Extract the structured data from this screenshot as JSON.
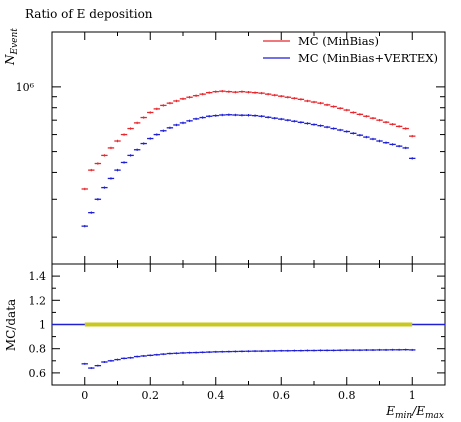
{
  "chart_data": [
    {
      "type": "line",
      "title": "Ratio of E deposition",
      "ylabel": "N_Event",
      "ylabel_main": "N",
      "ylabel_sub": "Event",
      "yscale": "log",
      "ytick_label": "10⁶",
      "ylim": [
        150000,
        1800000
      ],
      "xlim": [
        -0.1,
        1.1
      ],
      "legend_position": "top-right",
      "series": [
        {
          "name": "MC (MinBias)",
          "color": "#e8262c",
          "x": [
            0.0,
            0.02,
            0.04,
            0.06,
            0.08,
            0.1,
            0.12,
            0.14,
            0.16,
            0.18,
            0.2,
            0.22,
            0.24,
            0.26,
            0.28,
            0.3,
            0.32,
            0.34,
            0.36,
            0.38,
            0.4,
            0.42,
            0.44,
            0.46,
            0.48,
            0.5,
            0.52,
            0.54,
            0.56,
            0.58,
            0.6,
            0.62,
            0.64,
            0.66,
            0.68,
            0.7,
            0.72,
            0.74,
            0.76,
            0.78,
            0.8,
            0.82,
            0.84,
            0.86,
            0.88,
            0.9,
            0.92,
            0.94,
            0.96,
            0.98,
            1.0
          ],
          "y": [
            335000,
            410000,
            440000,
            480000,
            520000,
            560000,
            600000,
            640000,
            680000,
            720000,
            760000,
            790000,
            820000,
            840000,
            860000,
            880000,
            895000,
            910000,
            925000,
            940000,
            950000,
            955000,
            950000,
            945000,
            950000,
            945000,
            940000,
            935000,
            925000,
            915000,
            905000,
            895000,
            885000,
            875000,
            860000,
            850000,
            840000,
            825000,
            810000,
            795000,
            780000,
            760000,
            745000,
            730000,
            715000,
            700000,
            685000,
            670000,
            655000,
            640000,
            590000
          ]
        },
        {
          "name": "MC (MinBias+VERTEX)",
          "color": "#1f1fd6",
          "x": [
            0.0,
            0.02,
            0.04,
            0.06,
            0.08,
            0.1,
            0.12,
            0.14,
            0.16,
            0.18,
            0.2,
            0.22,
            0.24,
            0.26,
            0.28,
            0.3,
            0.32,
            0.34,
            0.36,
            0.38,
            0.4,
            0.42,
            0.44,
            0.46,
            0.48,
            0.5,
            0.52,
            0.54,
            0.56,
            0.58,
            0.6,
            0.62,
            0.64,
            0.66,
            0.68,
            0.7,
            0.72,
            0.74,
            0.76,
            0.78,
            0.8,
            0.82,
            0.84,
            0.86,
            0.88,
            0.9,
            0.92,
            0.94,
            0.96,
            0.98,
            1.0
          ],
          "y": [
            225000,
            260000,
            300000,
            340000,
            375000,
            410000,
            445000,
            480000,
            510000,
            545000,
            575000,
            600000,
            625000,
            645000,
            665000,
            680000,
            695000,
            710000,
            720000,
            730000,
            735000,
            740000,
            742000,
            740000,
            738000,
            738000,
            735000,
            730000,
            722000,
            715000,
            708000,
            700000,
            692000,
            684000,
            676000,
            668000,
            660000,
            650000,
            640000,
            630000,
            620000,
            608000,
            596000,
            584000,
            572000,
            560000,
            550000,
            540000,
            530000,
            520000,
            465000
          ]
        }
      ]
    },
    {
      "type": "line",
      "ylabel": "MC/data",
      "xlabel": "E_min/E_max",
      "xlabel_parts": [
        "E",
        "min",
        "/E",
        "max"
      ],
      "xlim": [
        -0.1,
        1.1
      ],
      "ylim": [
        0.5,
        1.5
      ],
      "xticks": [
        "0",
        "0.2",
        "0.4",
        "0.6",
        "0.8",
        "1"
      ],
      "yticks": [
        "0.6",
        "0.8",
        "1",
        "1.2",
        "1.4"
      ],
      "reference_line": 1,
      "band": {
        "x": [
          0,
          1
        ],
        "y": 1,
        "color": "#c8c81e"
      },
      "series": [
        {
          "name": "MC (MinBias+VERTEX)",
          "color": "#1f1fd6",
          "x": [
            0.0,
            0.02,
            0.04,
            0.06,
            0.08,
            0.1,
            0.12,
            0.14,
            0.16,
            0.18,
            0.2,
            0.22,
            0.24,
            0.26,
            0.28,
            0.3,
            0.32,
            0.34,
            0.36,
            0.38,
            0.4,
            0.42,
            0.44,
            0.46,
            0.48,
            0.5,
            0.52,
            0.54,
            0.56,
            0.58,
            0.6,
            0.62,
            0.64,
            0.66,
            0.68,
            0.7,
            0.72,
            0.74,
            0.76,
            0.78,
            0.8,
            0.82,
            0.84,
            0.86,
            0.88,
            0.9,
            0.92,
            0.94,
            0.96,
            0.98,
            1.0
          ],
          "y": [
            0.675,
            0.64,
            0.66,
            0.69,
            0.7,
            0.71,
            0.72,
            0.725,
            0.735,
            0.74,
            0.745,
            0.75,
            0.755,
            0.76,
            0.762,
            0.765,
            0.767,
            0.768,
            0.77,
            0.772,
            0.774,
            0.775,
            0.776,
            0.777,
            0.778,
            0.779,
            0.78,
            0.78,
            0.781,
            0.782,
            0.783,
            0.783,
            0.784,
            0.784,
            0.785,
            0.785,
            0.786,
            0.786,
            0.786,
            0.787,
            0.788,
            0.788,
            0.788,
            0.789,
            0.789,
            0.79,
            0.79,
            0.791,
            0.791,
            0.792,
            0.79
          ]
        }
      ]
    }
  ]
}
